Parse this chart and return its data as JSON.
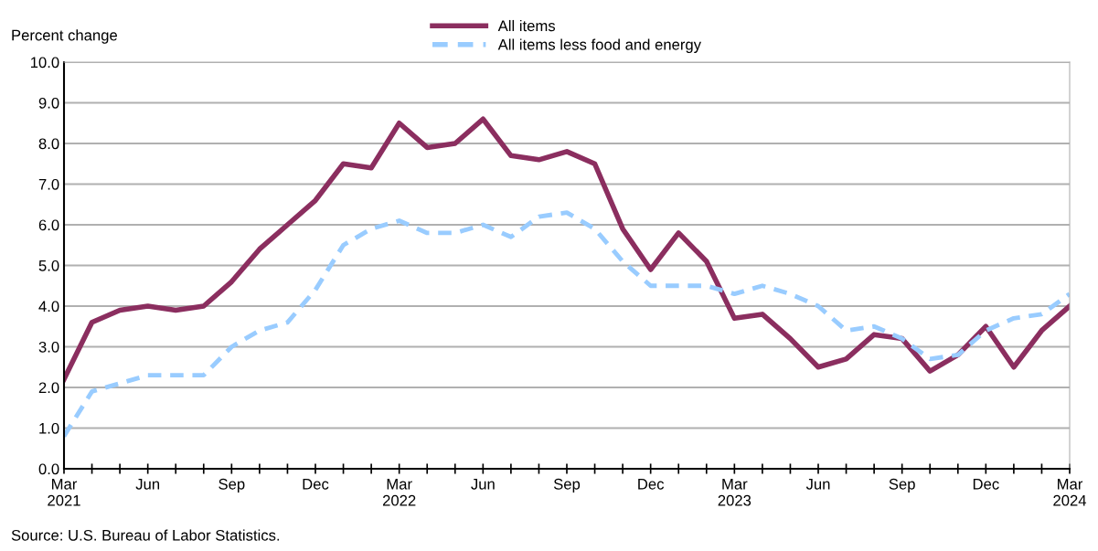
{
  "chart_data": {
    "type": "line",
    "ylabel": "Percent change",
    "categories": [
      "Mar\n2021",
      null,
      null,
      "Jun",
      null,
      null,
      "Sep",
      null,
      null,
      "Dec",
      null,
      null,
      "Mar\n2022",
      null,
      null,
      "Jun",
      null,
      null,
      "Sep",
      null,
      null,
      "Dec",
      null,
      null,
      "Mar\n2023",
      null,
      null,
      "Jun",
      null,
      null,
      "Sep",
      null,
      null,
      "Dec",
      null,
      null,
      "Mar\n2024"
    ],
    "series": [
      {
        "name": "All items",
        "color": "#8b2e5f",
        "line_style": "solid",
        "values": [
          2.2,
          3.6,
          3.9,
          4.0,
          3.9,
          4.0,
          4.6,
          5.4,
          6.0,
          6.6,
          7.5,
          7.4,
          8.5,
          7.9,
          8.0,
          8.6,
          7.7,
          7.6,
          7.8,
          7.5,
          5.9,
          4.9,
          5.8,
          5.1,
          3.7,
          3.8,
          3.2,
          2.5,
          2.7,
          3.3,
          3.2,
          2.4,
          2.8,
          3.5,
          2.5,
          3.4,
          4.0
        ]
      },
      {
        "name": "All items less food and energy",
        "color": "#99ccff",
        "line_style": "dashed",
        "values": [
          0.8,
          1.9,
          2.1,
          2.3,
          2.3,
          2.3,
          3.0,
          3.4,
          3.6,
          4.4,
          5.5,
          5.9,
          6.1,
          5.8,
          5.8,
          6.0,
          5.7,
          6.2,
          6.3,
          5.9,
          5.1,
          4.5,
          4.5,
          4.5,
          4.3,
          4.5,
          4.3,
          4.0,
          3.4,
          3.5,
          3.2,
          2.7,
          2.8,
          3.4,
          3.7,
          3.8,
          4.3
        ]
      }
    ],
    "ylim": [
      0,
      10
    ],
    "yticks": [
      {
        "value": 0,
        "label": "0.0"
      },
      {
        "value": 1,
        "label": "1.0"
      },
      {
        "value": 2,
        "label": "2.0"
      },
      {
        "value": 3,
        "label": "3.0"
      },
      {
        "value": 4,
        "label": "4.0"
      },
      {
        "value": 5,
        "label": "5.0"
      },
      {
        "value": 6,
        "label": "6.0"
      },
      {
        "value": 7,
        "label": "7.0"
      },
      {
        "value": 8,
        "label": "8.0"
      },
      {
        "value": 9,
        "label": "9.0"
      },
      {
        "value": 10,
        "label": "10.0"
      }
    ],
    "grid": "y",
    "legend": "top",
    "marker": "none",
    "annotations": [
      "Source: U.S. Bureau of Labor Statistics."
    ]
  }
}
